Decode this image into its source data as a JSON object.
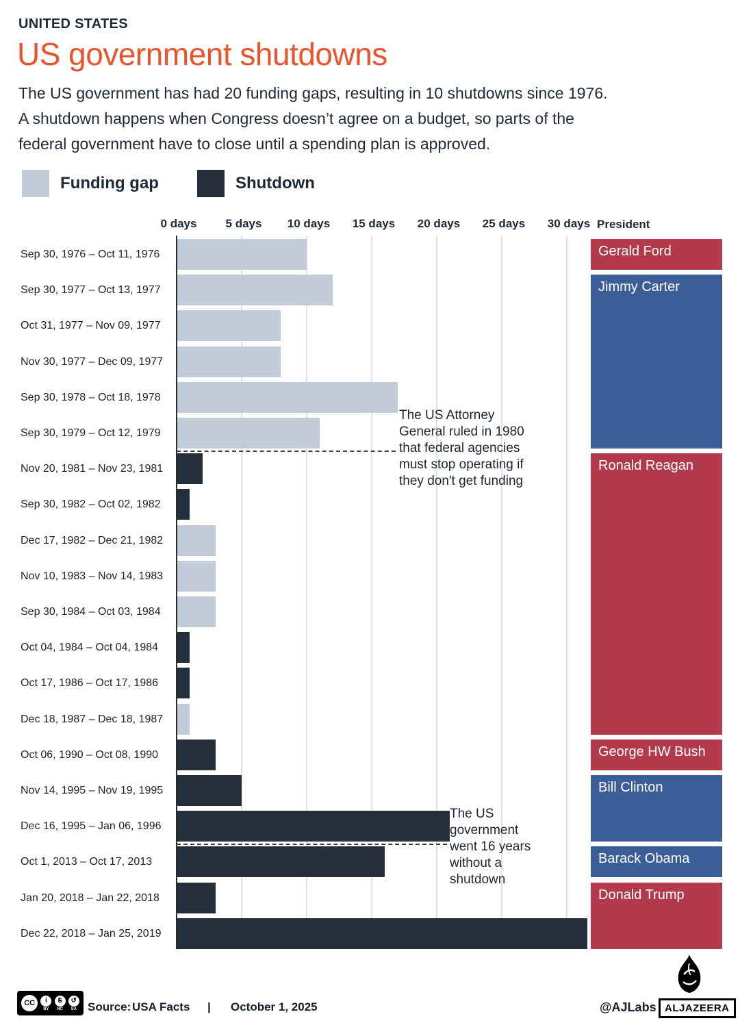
{
  "header": {
    "kicker": "UNITED STATES",
    "title": "US government shutdowns",
    "intro": "The US government has had 20 funding gaps, resulting in 10 shutdowns since 1976.\nA shutdown happens when Congress doesn’t agree on a budget, so parts of the\nfederal government have to close until a spending plan is approved.",
    "accent_color": "#e8552d"
  },
  "legend": {
    "items": [
      {
        "label": "Funding gap",
        "color": "#c2ccd9"
      },
      {
        "label": "Shutdown",
        "color": "#252f3c"
      }
    ]
  },
  "chart_data": {
    "type": "bar",
    "orientation": "horizontal",
    "unit": "days",
    "x_axis": {
      "ticks": [
        "0 days",
        "5 days",
        "10 days",
        "15 days",
        "20 days",
        "25 days",
        "30 days"
      ],
      "tick_values": [
        0,
        5,
        10,
        15,
        20,
        25,
        30
      ],
      "max_visible_days": 31.6
    },
    "president_column_header": "President",
    "rows": [
      {
        "label": "Sep 30, 1976 – Oct 11, 1976",
        "days": 10,
        "type": "funding_gap"
      },
      {
        "label": "Sep 30, 1977 – Oct 13, 1977",
        "days": 12,
        "type": "funding_gap"
      },
      {
        "label": "Oct 31, 1977 – Nov 09, 1977",
        "days": 8,
        "type": "funding_gap"
      },
      {
        "label": "Nov 30, 1977 – Dec 09, 1977",
        "days": 8,
        "type": "funding_gap"
      },
      {
        "label": "Sep 30, 1978 – Oct 18, 1978",
        "days": 17,
        "type": "funding_gap"
      },
      {
        "label": "Sep 30, 1979 – Oct 12, 1979",
        "days": 11,
        "type": "funding_gap"
      },
      {
        "label": "Nov 20, 1981 – Nov 23, 1981",
        "days": 2,
        "type": "shutdown"
      },
      {
        "label": "Sep 30, 1982 – Oct 02, 1982",
        "days": 1,
        "type": "shutdown"
      },
      {
        "label": "Dec 17, 1982 – Dec 21, 1982",
        "days": 3,
        "type": "funding_gap"
      },
      {
        "label": "Nov 10, 1983 – Nov 14, 1983",
        "days": 3,
        "type": "funding_gap"
      },
      {
        "label": "Sep 30, 1984 – Oct 03, 1984",
        "days": 3,
        "type": "funding_gap"
      },
      {
        "label": "Oct 04, 1984 – Oct 04, 1984",
        "days": 1,
        "type": "shutdown"
      },
      {
        "label": "Oct 17, 1986 – Oct 17, 1986",
        "days": 1,
        "type": "shutdown"
      },
      {
        "label": "Dec 18, 1987 – Dec 18, 1987",
        "days": 1,
        "type": "funding_gap"
      },
      {
        "label": "Oct 06, 1990 – Oct 08, 1990",
        "days": 3,
        "type": "shutdown"
      },
      {
        "label": "Nov 14, 1995 – Nov 19, 1995",
        "days": 5,
        "type": "shutdown"
      },
      {
        "label": "Dec 16, 1995 – Jan 06, 1996",
        "days": 21,
        "type": "shutdown"
      },
      {
        "label": "Oct 1, 2013 – Oct 17, 2013",
        "days": 16,
        "type": "shutdown"
      },
      {
        "label": "Jan 20, 2018 – Jan 22, 2018",
        "days": 3,
        "type": "shutdown"
      },
      {
        "label": "Dec 22, 2018 – Jan 25, 2019",
        "days": 34,
        "type": "shutdown"
      }
    ],
    "presidents": [
      {
        "name": "Gerald Ford",
        "party": "republican",
        "row_start": 0,
        "row_end": 0
      },
      {
        "name": "Jimmy Carter",
        "party": "democrat",
        "row_start": 1,
        "row_end": 5
      },
      {
        "name": "Ronald Reagan",
        "party": "republican",
        "row_start": 6,
        "row_end": 13
      },
      {
        "name": "George HW Bush",
        "party": "republican",
        "row_start": 14,
        "row_end": 14
      },
      {
        "name": "Bill Clinton",
        "party": "democrat",
        "row_start": 15,
        "row_end": 16
      },
      {
        "name": "Barack Obama",
        "party": "democrat",
        "row_start": 17,
        "row_end": 17
      },
      {
        "name": "Donald Trump",
        "party": "republican",
        "row_start": 18,
        "row_end": 19
      }
    ],
    "annotations": [
      {
        "text": "The US Attorney\nGeneral ruled in 1980\nthat federal agencies\nmust stop operating if\nthey don't get funding",
        "after_row": 5
      },
      {
        "text": "The US\ngovernment\nwent 16 years\nwithout a\nshutdown",
        "after_row": 16
      }
    ],
    "colors": {
      "funding_gap": "#c2ccd9",
      "shutdown": "#252f3c",
      "republican": "#b23a4b",
      "democrat": "#3b5d98"
    },
    "grid": true,
    "legend_position": "top"
  },
  "footer": {
    "license": {
      "name": "CC BY-NC-SA",
      "parts": [
        {
          "icon": "cc-icon",
          "glyph": "CC",
          "label": ""
        },
        {
          "icon": "by-icon",
          "glyph": "i",
          "label": "BY"
        },
        {
          "icon": "nc-icon",
          "glyph": "$",
          "label": "NC"
        },
        {
          "icon": "sa-icon",
          "glyph": "↺",
          "label": "SA"
        }
      ]
    },
    "source_label": "Source:",
    "source_value": "USA Facts",
    "separator": "|",
    "date": "October 1, 2025",
    "credit": "@AJLabs",
    "brand": "ALJAZEERA"
  }
}
